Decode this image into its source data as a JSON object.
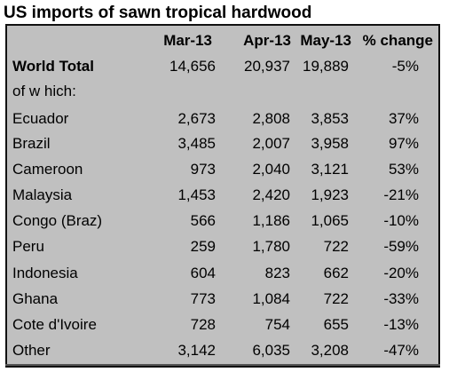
{
  "chart_data": {
    "type": "table",
    "title": "US imports of sawn tropical hardwood",
    "columns": [
      "",
      "Mar-13",
      "Apr-13",
      "May-13",
      "% change"
    ],
    "total": {
      "label": "World Total",
      "values": [
        "14,656",
        "20,937",
        "19,889",
        "-5%"
      ]
    },
    "subheading": "of w hich:",
    "rows": [
      {
        "label": "Ecuador",
        "values": [
          "2,673",
          "2,808",
          "3,853",
          "37%"
        ]
      },
      {
        "label": "Brazil",
        "values": [
          "3,485",
          "2,007",
          "3,958",
          "97%"
        ]
      },
      {
        "label": "Cameroon",
        "values": [
          "973",
          "2,040",
          "3,121",
          "53%"
        ]
      },
      {
        "label": "Malaysia",
        "values": [
          "1,453",
          "2,420",
          "1,923",
          "-21%"
        ]
      },
      {
        "label": "Congo (Braz)",
        "values": [
          "566",
          "1,186",
          "1,065",
          "-10%"
        ]
      },
      {
        "label": "Peru",
        "values": [
          "259",
          "1,780",
          "722",
          "-59%"
        ]
      },
      {
        "label": "Indonesia",
        "values": [
          "604",
          "823",
          "662",
          "-20%"
        ]
      },
      {
        "label": "Ghana",
        "values": [
          "773",
          "1,084",
          "722",
          "-33%"
        ]
      },
      {
        "label": "Cote d'Ivoire",
        "values": [
          "728",
          "754",
          "655",
          "-13%"
        ]
      },
      {
        "label": "Other",
        "values": [
          "3,142",
          "6,035",
          "3,208",
          "-47%"
        ]
      }
    ]
  },
  "colors": {
    "panel_background": "#c0c0c0",
    "text": "#000000",
    "border": "#111111"
  }
}
